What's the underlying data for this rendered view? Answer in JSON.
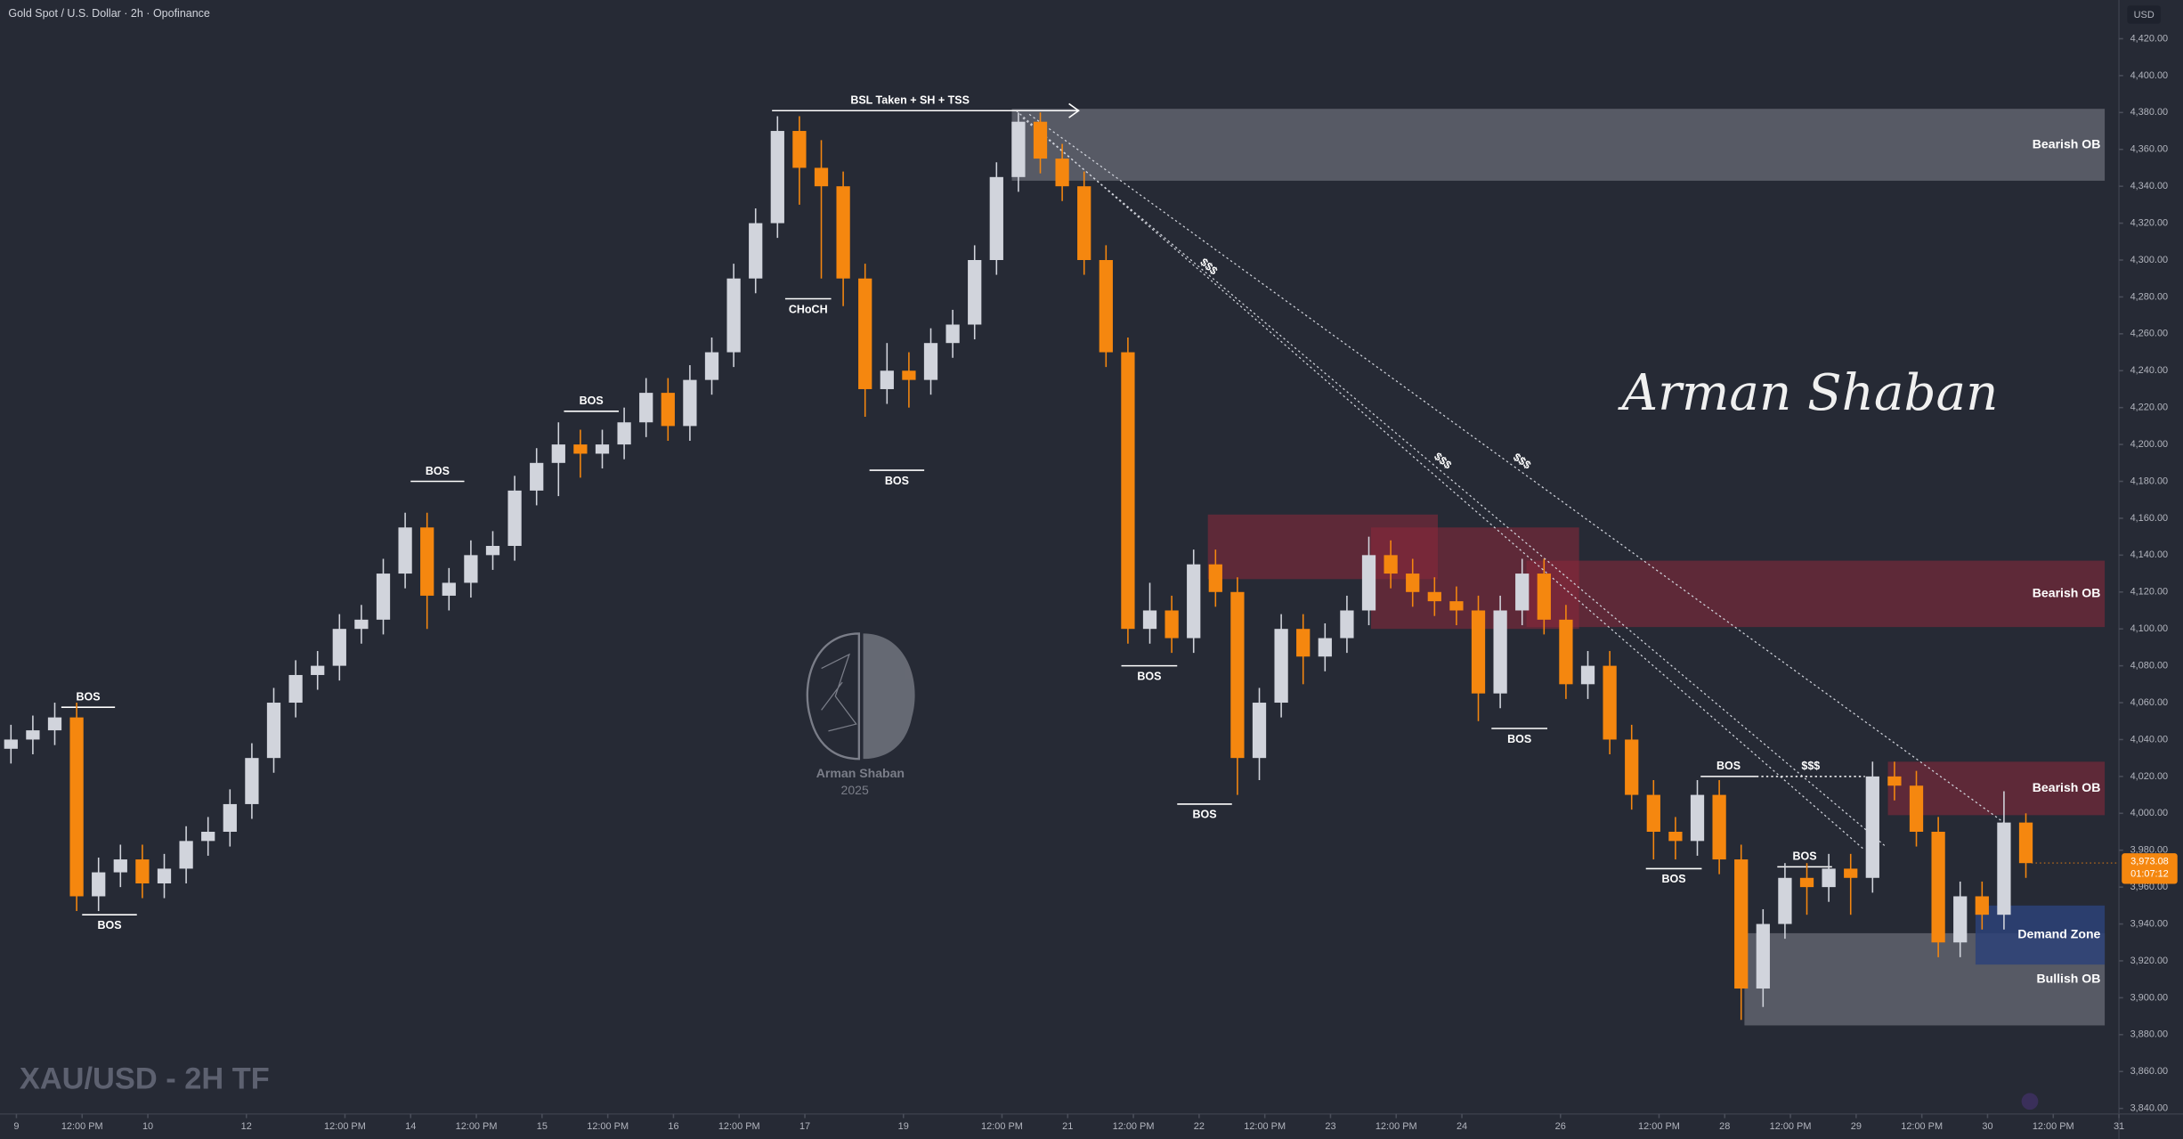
{
  "header": {
    "symbol": "Gold Spot / U.S. Dollar · 2h · Opofinance",
    "currency": "USD",
    "watermark": "XAU/USD - 2H TF",
    "signature": "Arman Shaban",
    "logo_name": "Arman Shaban",
    "logo_year": "2025"
  },
  "chart_data": {
    "type": "candlestick",
    "up_color": "#d1d4dc",
    "down_color": "#f5870f",
    "xlim": [
      0,
      193.5
    ],
    "ylim": [
      3837,
      4441
    ],
    "grid": false,
    "x": [
      1,
      3,
      5,
      7,
      9,
      11,
      13,
      15,
      17,
      19,
      21,
      23,
      25,
      27,
      29,
      31,
      33,
      35,
      37,
      39,
      41,
      43,
      45,
      47,
      49,
      51,
      53,
      55,
      57,
      59,
      61,
      63,
      65,
      67,
      69,
      71,
      73,
      75,
      77,
      79,
      81,
      83,
      85,
      87,
      89,
      91,
      93,
      95,
      97,
      99,
      101,
      103,
      105,
      107,
      109,
      111,
      113,
      115,
      117,
      119,
      121,
      123,
      125,
      127,
      129,
      131,
      133,
      135,
      137,
      139,
      141,
      143,
      145,
      147,
      149,
      151,
      153,
      155,
      157,
      159,
      161,
      163,
      165,
      167,
      169,
      171,
      173,
      175,
      177,
      179,
      181,
      183,
      185
    ],
    "open": [
      4035,
      4040,
      4045,
      4052,
      3955,
      3968,
      3975,
      3962,
      3970,
      3985,
      3990,
      4005,
      4030,
      4060,
      4075,
      4080,
      4100,
      4105,
      4130,
      4155,
      4118,
      4125,
      4140,
      4145,
      4175,
      4190,
      4200,
      4195,
      4200,
      4212,
      4228,
      4210,
      4235,
      4250,
      4290,
      4320,
      4370,
      4350,
      4340,
      4290,
      4230,
      4240,
      4235,
      4255,
      4265,
      4300,
      4345,
      4375,
      4355,
      4340,
      4300,
      4250,
      4100,
      4110,
      4095,
      4135,
      4120,
      4030,
      4060,
      4100,
      4085,
      4095,
      4110,
      4140,
      4130,
      4120,
      4115,
      4110,
      4065,
      4110,
      4130,
      4105,
      4070,
      4080,
      4040,
      4010,
      3990,
      3985,
      4010,
      3975,
      3905,
      3940,
      3965,
      3960,
      3970,
      3965,
      4020,
      4015,
      3990,
      3930,
      3955,
      3945,
      3995
    ],
    "high": [
      4048,
      4053,
      4060,
      4060,
      3976,
      3983,
      3983,
      3978,
      3993,
      3998,
      4013,
      4038,
      4068,
      4083,
      4088,
      4108,
      4113,
      4138,
      4163,
      4163,
      4133,
      4148,
      4153,
      4183,
      4198,
      4212,
      4208,
      4208,
      4220,
      4236,
      4236,
      4243,
      4258,
      4298,
      4328,
      4378,
      4378,
      4365,
      4348,
      4298,
      4255,
      4250,
      4263,
      4273,
      4308,
      4353,
      4380,
      4380,
      4363,
      4348,
      4308,
      4258,
      4125,
      4118,
      4143,
      4143,
      4128,
      4068,
      4108,
      4108,
      4103,
      4118,
      4150,
      4148,
      4138,
      4128,
      4123,
      4118,
      4118,
      4138,
      4138,
      4113,
      4088,
      4088,
      4048,
      4018,
      3998,
      4018,
      4018,
      3983,
      3948,
      3973,
      3973,
      3978,
      3978,
      4028,
      4028,
      4023,
      3998,
      3963,
      3963,
      4012,
      4000
    ],
    "low": [
      4027,
      4032,
      4037,
      3947,
      3947,
      3960,
      3954,
      3954,
      3962,
      3977,
      3982,
      3997,
      4022,
      4052,
      4067,
      4072,
      4092,
      4097,
      4122,
      4100,
      4110,
      4117,
      4132,
      4137,
      4167,
      4172,
      4182,
      4187,
      4192,
      4204,
      4202,
      4202,
      4227,
      4242,
      4282,
      4312,
      4330,
      4290,
      4275,
      4215,
      4222,
      4220,
      4227,
      4247,
      4257,
      4292,
      4337,
      4347,
      4332,
      4292,
      4242,
      4092,
      4092,
      4087,
      4087,
      4112,
      4010,
      4018,
      4052,
      4070,
      4077,
      4087,
      4102,
      4122,
      4112,
      4107,
      4102,
      4050,
      4057,
      4102,
      4097,
      4062,
      4062,
      4032,
      4002,
      3975,
      3975,
      3977,
      3967,
      3888,
      3895,
      3932,
      3945,
      3952,
      3945,
      3957,
      4007,
      3982,
      3922,
      3922,
      3937,
      3937,
      3965
    ],
    "close": [
      4040,
      4045,
      4052,
      3955,
      3968,
      3975,
      3962,
      3970,
      3985,
      3990,
      4005,
      4030,
      4060,
      4075,
      4080,
      4100,
      4105,
      4130,
      4155,
      4118,
      4125,
      4140,
      4145,
      4175,
      4190,
      4200,
      4195,
      4200,
      4212,
      4228,
      4210,
      4235,
      4250,
      4290,
      4320,
      4370,
      4350,
      4340,
      4290,
      4230,
      4240,
      4235,
      4255,
      4265,
      4300,
      4345,
      4375,
      4355,
      4340,
      4300,
      4250,
      4100,
      4110,
      4095,
      4135,
      4120,
      4030,
      4060,
      4100,
      4085,
      4095,
      4110,
      4140,
      4130,
      4120,
      4115,
      4110,
      4065,
      4110,
      4130,
      4105,
      4070,
      4080,
      4040,
      4010,
      3990,
      3985,
      4010,
      3975,
      3905,
      3940,
      3965,
      3960,
      3970,
      3965,
      4020,
      4015,
      3990,
      3930,
      3955,
      3945,
      3995,
      3973
    ],
    "yticks": [
      {
        "value": 3840,
        "label": "3,840.00"
      },
      {
        "value": 3860,
        "label": "3,860.00"
      },
      {
        "value": 3880,
        "label": "3,880.00"
      },
      {
        "value": 3900,
        "label": "3,900.00"
      },
      {
        "value": 3920,
        "label": "3,920.00"
      },
      {
        "value": 3940,
        "label": "3,940.00"
      },
      {
        "value": 3960,
        "label": "3,960.00"
      },
      {
        "value": 3980,
        "label": "3,980.00"
      },
      {
        "value": 4000,
        "label": "4,000.00"
      },
      {
        "value": 4020,
        "label": "4,020.00"
      },
      {
        "value": 4040,
        "label": "4,040.00"
      },
      {
        "value": 4060,
        "label": "4,060.00"
      },
      {
        "value": 4080,
        "label": "4,080.00"
      },
      {
        "value": 4100,
        "label": "4,100.00"
      },
      {
        "value": 4120,
        "label": "4,120.00"
      },
      {
        "value": 4140,
        "label": "4,140.00"
      },
      {
        "value": 4160,
        "label": "4,160.00"
      },
      {
        "value": 4180,
        "label": "4,180.00"
      },
      {
        "value": 4200,
        "label": "4,200.00"
      },
      {
        "value": 4220,
        "label": "4,220.00"
      },
      {
        "value": 4240,
        "label": "4,240.00"
      },
      {
        "value": 4260,
        "label": "4,260.00"
      },
      {
        "value": 4280,
        "label": "4,280.00"
      },
      {
        "value": 4300,
        "label": "4,300.00"
      },
      {
        "value": 4320,
        "label": "4,320.00"
      },
      {
        "value": 4340,
        "label": "4,340.00"
      },
      {
        "value": 4360,
        "label": "4,360.00"
      },
      {
        "value": 4380,
        "label": "4,380.00"
      },
      {
        "value": 4400,
        "label": "4,400.00"
      },
      {
        "value": 4420,
        "label": "4,420.00"
      }
    ],
    "xticks": [
      {
        "value": 1.5,
        "label": "9"
      },
      {
        "value": 7.5,
        "label": "12:00 PM"
      },
      {
        "value": 13.5,
        "label": "10"
      },
      {
        "value": 22.5,
        "label": "12"
      },
      {
        "value": 31.5,
        "label": "12:00 PM"
      },
      {
        "value": 37.5,
        "label": "14"
      },
      {
        "value": 43.5,
        "label": "12:00 PM"
      },
      {
        "value": 49.5,
        "label": "15"
      },
      {
        "value": 55.5,
        "label": "12:00 PM"
      },
      {
        "value": 61.5,
        "label": "16"
      },
      {
        "value": 67.5,
        "label": "12:00 PM"
      },
      {
        "value": 73.5,
        "label": "17"
      },
      {
        "value": 82.5,
        "label": "19"
      },
      {
        "value": 91.5,
        "label": "12:00 PM"
      },
      {
        "value": 97.5,
        "label": "21"
      },
      {
        "value": 103.5,
        "label": "12:00 PM"
      },
      {
        "value": 109.5,
        "label": "22"
      },
      {
        "value": 115.5,
        "label": "12:00 PM"
      },
      {
        "value": 121.5,
        "label": "23"
      },
      {
        "value": 127.5,
        "label": "12:00 PM"
      },
      {
        "value": 133.5,
        "label": "24"
      },
      {
        "value": 142.5,
        "label": "26"
      },
      {
        "value": 151.5,
        "label": "12:00 PM"
      },
      {
        "value": 157.5,
        "label": "28"
      },
      {
        "value": 163.5,
        "label": "12:00 PM"
      },
      {
        "value": 169.5,
        "label": "29"
      },
      {
        "value": 175.5,
        "label": "12:00 PM"
      },
      {
        "value": 181.5,
        "label": "30"
      },
      {
        "value": 187.5,
        "label": "12:00 PM"
      },
      {
        "value": 193.5,
        "label": "31"
      }
    ],
    "zones": [
      {
        "x": [
          110.3,
          131.3
        ],
        "y": [
          4127,
          4162
        ],
        "color": "rgba(140,40,58,0.55)"
      },
      {
        "x": [
          125.2,
          144.2
        ],
        "y": [
          4100,
          4155
        ],
        "color": "rgba(140,40,58,0.55)"
      },
      {
        "label": "Bearish OB",
        "x": [
          139.4,
          192.2
        ],
        "y": [
          4101,
          4137
        ],
        "color": "rgba(140,40,58,0.55)"
      },
      {
        "label": "Bearish OB",
        "x": [
          92.4,
          192.2
        ],
        "y": [
          4343,
          4382
        ],
        "color": "rgba(120,123,134,0.6)"
      },
      {
        "label": "Bearish OB",
        "x": [
          172.4,
          192.2
        ],
        "y": [
          3999,
          4028
        ],
        "color": "rgba(140,40,58,0.55)"
      },
      {
        "label": "Bullish OB",
        "x": [
          159.3,
          192.2
        ],
        "y": [
          3885,
          3935
        ],
        "color": "rgba(120,123,134,0.6)"
      },
      {
        "label": "Demand Zone",
        "x": [
          180.4,
          192.2
        ],
        "y": [
          3918,
          3950
        ],
        "color": "rgba(45,66,120,0.85)"
      }
    ],
    "levels": [
      {
        "label": "BOS",
        "x": [
          5.6,
          10.5
        ],
        "y": 4057.5,
        "side": "above"
      },
      {
        "label": "BOS",
        "x": [
          7.5,
          12.5
        ],
        "y": 3945,
        "side": "below"
      },
      {
        "label": "BOS",
        "x": [
          37.5,
          42.4
        ],
        "y": 4180,
        "side": "above"
      },
      {
        "label": "BOS",
        "x": [
          51.5,
          56.5
        ],
        "y": 4218,
        "side": "above"
      },
      {
        "label": "CHoCH",
        "x": [
          71.7,
          75.9
        ],
        "y": 4279,
        "side": "below"
      },
      {
        "label": "BOS",
        "x": [
          79.4,
          84.4
        ],
        "y": 4186,
        "side": "below"
      },
      {
        "label": "BOS",
        "x": [
          102.4,
          107.5
        ],
        "y": 4080,
        "side": "below"
      },
      {
        "label": "BOS",
        "x": [
          107.5,
          112.5
        ],
        "y": 4005,
        "side": "below"
      },
      {
        "label": "BOS",
        "x": [
          136.2,
          141.3
        ],
        "y": 4046,
        "side": "below"
      },
      {
        "label": "BOS",
        "x": [
          155.3,
          160.4
        ],
        "y": 4020,
        "side": "above"
      },
      {
        "label": "BOS",
        "x": [
          150.3,
          155.4
        ],
        "y": 3970,
        "side": "below"
      },
      {
        "label": "BOS",
        "x": [
          162.3,
          167.3
        ],
        "y": 3971,
        "side": "above"
      },
      {
        "label": "$$$",
        "x": [
          160.4,
          170.3
        ],
        "y": 4020,
        "side": "above",
        "style": "dotted"
      },
      {
        "label": "BSL Taken + SH + TSS",
        "x": [
          70.5,
          98.5
        ],
        "y": 4381,
        "side": "above",
        "arrow": true
      }
    ],
    "trendlines": [
      {
        "label": "$$$",
        "x": [
          92.8,
          170.3
        ],
        "y": [
          4381,
          3980
        ]
      },
      {
        "label": "$$$",
        "x": [
          93.4,
          172.2
        ],
        "y": [
          4377,
          3982
        ]
      },
      {
        "label": "$$$",
        "x": [
          94,
          183
        ],
        "y": [
          4379,
          3995
        ]
      }
    ],
    "last_price": {
      "value": 3973.08,
      "label": "3,973.08"
    },
    "countdown": "01:07:12"
  }
}
